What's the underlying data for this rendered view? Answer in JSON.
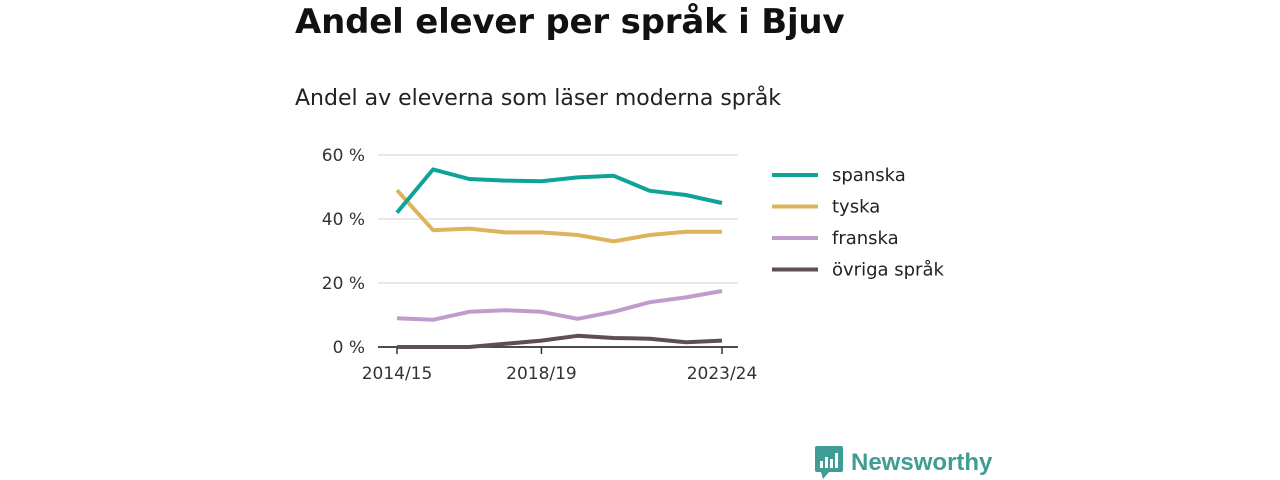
{
  "header": {
    "title": "Andel elever per språk i Bjuv",
    "subtitle": "Andel av eleverna som läser moderna språk"
  },
  "brand": {
    "name": "Newsworthy",
    "color": "#3f9d96",
    "icon": "newsworthy-logo-icon"
  },
  "chart_data": {
    "type": "line",
    "x": [
      "2014/15",
      "2015/16",
      "2016/17",
      "2017/18",
      "2018/19",
      "2019/20",
      "2020/21",
      "2021/22",
      "2022/23",
      "2023/24"
    ],
    "x_tick_labels": [
      "2014/15",
      "2018/19",
      "2023/24"
    ],
    "ylim": [
      0,
      60
    ],
    "y_ticks": [
      0,
      20,
      40,
      60
    ],
    "y_tick_labels": [
      "0 %",
      "20 %",
      "40 %",
      "60 %"
    ],
    "grid": true,
    "legend_position": "right",
    "series": [
      {
        "name": "spanska",
        "color": "#0fa397",
        "values": [
          42,
          55.5,
          52.5,
          52,
          51.8,
          53,
          53.5,
          48.8,
          47.5,
          45
        ]
      },
      {
        "name": "tyska",
        "color": "#dbb45c",
        "values": [
          49,
          36.5,
          37,
          35.8,
          35.8,
          35,
          33,
          35,
          36,
          36
        ]
      },
      {
        "name": "franska",
        "color": "#c09ccc",
        "values": [
          9,
          8.5,
          11,
          11.5,
          11,
          8.8,
          11,
          14,
          15.5,
          17.5
        ]
      },
      {
        "name": "övriga språk",
        "color": "#5e4e59",
        "values": [
          0,
          0,
          0,
          1,
          2,
          3.5,
          2.8,
          2.6,
          1.5,
          2
        ]
      }
    ]
  }
}
